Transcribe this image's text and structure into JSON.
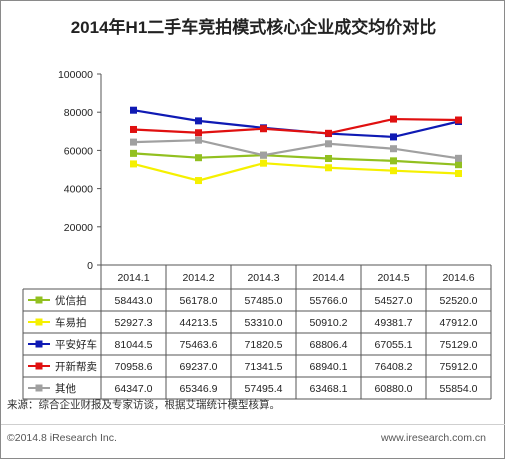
{
  "chart_data": {
    "type": "line",
    "title": "2014年H1二手车竞拍模式核心企业成交均价对比",
    "categories": [
      "2014.1",
      "2014.2",
      "2014.3",
      "2014.4",
      "2014.5",
      "2014.6"
    ],
    "ylim": [
      0,
      100000
    ],
    "yticks": [
      0,
      20000,
      40000,
      60000,
      80000,
      100000
    ],
    "grid": false,
    "legend": "table-below",
    "series": [
      {
        "name": "优信拍",
        "color": "#92c020",
        "values": [
          58443.0,
          56178.0,
          57485.0,
          55766.0,
          54527.0,
          52520.0
        ],
        "labels": [
          "58443.0",
          "56178.0",
          "57485.0",
          "55766.0",
          "54527.0",
          "52520.0"
        ]
      },
      {
        "name": "车易拍",
        "color": "#f5f000",
        "values": [
          52927.3,
          44213.5,
          53310.0,
          50910.2,
          49381.7,
          47912.0
        ],
        "labels": [
          "52927.3",
          "44213.5",
          "53310.0",
          "50910.2",
          "49381.7",
          "47912.0"
        ]
      },
      {
        "name": "平安好车",
        "color": "#0f1ab4",
        "values": [
          81044.5,
          75463.6,
          71820.5,
          68806.4,
          67055.1,
          75129.0
        ],
        "labels": [
          "81044.5",
          "75463.6",
          "71820.5",
          "68806.4",
          "67055.1",
          "75129.0"
        ]
      },
      {
        "name": "开新帮卖",
        "color": "#e01010",
        "values": [
          70958.6,
          69237.0,
          71341.5,
          68940.1,
          76408.2,
          75912.0
        ],
        "labels": [
          "70958.6",
          "69237.0",
          "71341.5",
          "68940.1",
          "76408.2",
          "75912.0"
        ]
      },
      {
        "name": "其他",
        "color": "#a0a0a0",
        "values": [
          64347.0,
          65346.9,
          57495.4,
          63468.1,
          60880.0,
          55854.0
        ],
        "labels": [
          "64347.0",
          "65346.9",
          "57495.4",
          "63468.1",
          "60880.0",
          "55854.0"
        ]
      }
    ]
  },
  "source": "来源：综合企业财报及专家访谈，根据艾瑞统计模型核算。",
  "footer_left": "©2014.8 iResearch Inc.",
  "footer_right": "www.iresearch.com.cn"
}
